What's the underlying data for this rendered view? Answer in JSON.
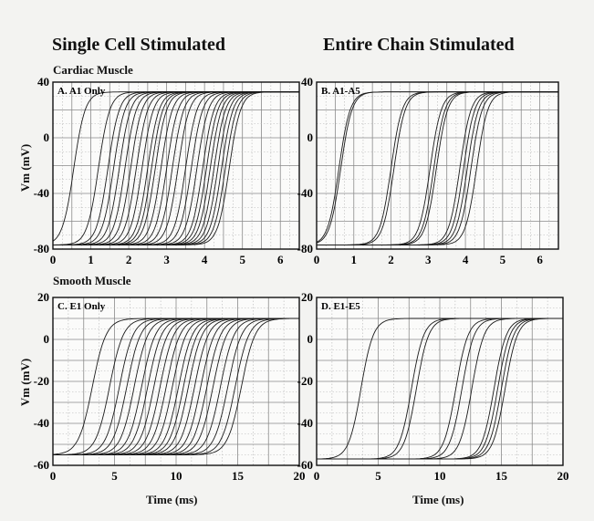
{
  "headings": {
    "single": "Single Cell Stimulated",
    "entire": "Entire Chain Stimulated"
  },
  "sections": {
    "cardiac": "Cardiac Muscle",
    "smooth": "Smooth Muscle"
  },
  "chart_data": [
    {
      "id": "A",
      "type": "line",
      "panel_label": "A. A1 Only",
      "ylabel": "Vm (mV)",
      "xlabel": "",
      "xlim": [
        0,
        6.5
      ],
      "ylim": [
        -80,
        40
      ],
      "xticks": [
        0,
        1,
        2,
        3,
        4,
        5,
        6
      ],
      "yticks": [
        -80,
        -40,
        0,
        40
      ],
      "grid": true,
      "rest": -77,
      "peak": 33,
      "rise_duration": 1.2,
      "upstroke_midpoints": [
        0.55,
        1.2,
        1.45,
        1.6,
        1.75,
        1.9,
        2.05,
        2.2,
        2.35,
        2.5,
        2.6,
        2.7,
        2.85,
        3.0,
        3.15,
        3.3,
        3.5,
        3.65,
        3.8,
        3.95,
        4.05,
        4.15,
        4.25,
        4.35,
        4.45,
        4.55,
        4.65
      ]
    },
    {
      "id": "B",
      "type": "line",
      "panel_label": "B. A1-A5",
      "ylabel": "",
      "xlabel": "",
      "xlim": [
        0,
        6.5
      ],
      "ylim": [
        -80,
        40
      ],
      "xticks": [
        0,
        1,
        2,
        3,
        4,
        5,
        6
      ],
      "yticks": [
        -80,
        -40,
        0,
        40
      ],
      "grid": true,
      "rest": -77,
      "peak": 33,
      "rise_duration": 1.2,
      "upstroke_midpoints": [
        0.6,
        0.65,
        2.0,
        2.08,
        3.05,
        3.15,
        3.22,
        3.85,
        3.95,
        4.05,
        4.15,
        4.3
      ]
    },
    {
      "id": "C",
      "type": "line",
      "panel_label": "C. E1 Only",
      "ylabel": "Vm (mV)",
      "xlabel": "Time (ms)",
      "xlim": [
        0,
        20
      ],
      "ylim": [
        -60,
        20
      ],
      "xticks": [
        0,
        5,
        10,
        15,
        20
      ],
      "yticks": [
        -60,
        -40,
        -20,
        0,
        20
      ],
      "grid": true,
      "rest": -55,
      "peak": 10,
      "rise_duration": 4.5,
      "upstroke_midpoints": [
        3.2,
        4.6,
        5.4,
        6.0,
        6.6,
        7.2,
        7.7,
        8.2,
        8.7,
        9.2,
        9.7,
        10.2,
        10.6,
        11.0,
        11.5,
        12.0,
        12.5,
        13.0,
        13.6,
        14.2,
        14.8,
        15.3
      ]
    },
    {
      "id": "D",
      "type": "line",
      "panel_label": "D. E1-E5",
      "ylabel": "",
      "xlabel": "Time (ms)",
      "xlim": [
        0,
        20
      ],
      "ylim": [
        -60,
        20
      ],
      "xticks": [
        0,
        5,
        10,
        15,
        20
      ],
      "yticks": [
        -60,
        -40,
        -20,
        0,
        20
      ],
      "grid": true,
      "rest": -57,
      "peak": 10,
      "rise_duration": 4.0,
      "upstroke_midpoints": [
        3.6,
        7.7,
        8.1,
        11.3,
        11.8,
        12.6,
        14.4,
        14.7,
        15.0,
        15.3
      ]
    }
  ]
}
